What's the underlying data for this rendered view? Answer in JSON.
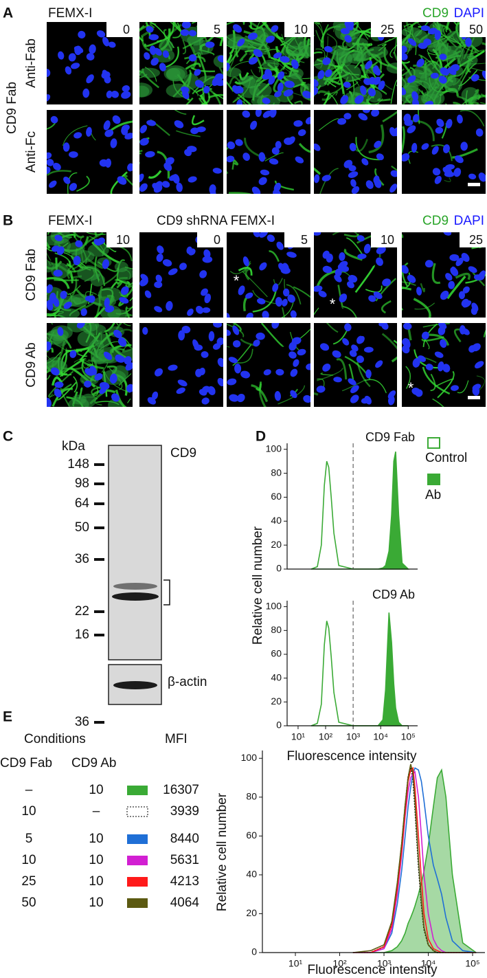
{
  "panel_a": {
    "label": "A",
    "cell_line": "FEMX-I",
    "stain": [
      "CD9",
      "DAPI"
    ],
    "group_label": "CD9 Fab",
    "rows": [
      "Anti-Fab",
      "Anti-Fc"
    ],
    "concentrations": [
      0,
      5,
      10,
      25,
      50
    ]
  },
  "panel_b": {
    "label": "B",
    "cell_lines": [
      "FEMX-I",
      "CD9 shRNA FEMX-I"
    ],
    "stain": [
      "CD9",
      "DAPI"
    ],
    "rows": [
      "CD9 Fab",
      "CD9 Ab"
    ],
    "concentrations": [
      10,
      0,
      5,
      10,
      25
    ],
    "asterisks": [
      "*",
      "*",
      "*"
    ]
  },
  "panel_c": {
    "label": "C",
    "unit": "kDa",
    "markers": [
      148,
      98,
      64,
      50,
      36,
      22,
      16
    ],
    "target": "CD9",
    "loading_control": "β-actin",
    "loading_marker": 36
  },
  "panel_d": {
    "label": "D"
  },
  "panel_e": {
    "label": "E",
    "table": {
      "header": "Conditions",
      "value_header": "MFI",
      "columns": [
        "CD9 Fab",
        "CD9 Ab"
      ],
      "rows": [
        {
          "fab": "–",
          "ab": "10",
          "mfi": 16307,
          "color": "#3aaa35"
        },
        {
          "fab": "10",
          "ab": "–",
          "mfi": 3939,
          "color": "#000000",
          "dotted": true
        },
        {
          "fab": "5",
          "ab": "10",
          "mfi": 8440,
          "color": "#1f6fd6"
        },
        {
          "fab": "10",
          "ab": "10",
          "mfi": 5631,
          "color": "#d21fd2"
        },
        {
          "fab": "25",
          "ab": "10",
          "mfi": 4213,
          "color": "#ff1a1a"
        },
        {
          "fab": "50",
          "ab": "10",
          "mfi": 4064,
          "color": "#5c5a12"
        }
      ]
    }
  },
  "chart_data": [
    {
      "type": "line",
      "title": "CD9 Fab",
      "ylabel": "Relative cell number",
      "xscale": "log",
      "x": [
        30,
        50,
        70,
        90,
        110,
        130,
        160,
        200,
        300,
        1000,
        8000,
        12000,
        15000,
        20000,
        25000,
        30000,
        35000,
        45000,
        60000,
        100000
      ],
      "xlim": [
        4,
        220000
      ],
      "ylim": [
        0,
        105
      ],
      "yticks": [
        0,
        20,
        40,
        60,
        80,
        100
      ],
      "threshold": 1000,
      "series": [
        {
          "name": "Control",
          "color": "#3aaa35",
          "fill": false,
          "values": [
            0,
            2,
            20,
            70,
            90,
            85,
            60,
            30,
            3,
            0,
            0,
            0,
            0,
            0,
            0,
            0,
            0,
            0,
            0,
            0
          ]
        },
        {
          "name": "Ab",
          "color": "#3aaa35",
          "fill": true,
          "values": [
            0,
            0,
            0,
            0,
            0,
            0,
            0,
            0,
            0,
            0,
            0,
            1,
            3,
            15,
            45,
            90,
            98,
            45,
            5,
            0
          ]
        }
      ]
    },
    {
      "type": "line",
      "title": "CD9 Ab",
      "xlabel": "Fluorescence intensity",
      "xscale": "log",
      "x": [
        30,
        50,
        70,
        90,
        110,
        130,
        160,
        200,
        300,
        1000,
        8000,
        12000,
        15000,
        20000,
        25000,
        30000,
        35000,
        45000,
        60000,
        100000
      ],
      "xlim": [
        4,
        220000
      ],
      "ylim": [
        0,
        105
      ],
      "yticks": [
        0,
        20,
        40,
        60,
        80,
        100
      ],
      "threshold": 1000,
      "xticks": [
        {
          "value": 10,
          "label": "10¹"
        },
        {
          "value": 100,
          "label": "10²"
        },
        {
          "value": 1000,
          "label": "10³"
        },
        {
          "value": 10000,
          "label": "10⁴"
        },
        {
          "value": 100000,
          "label": "10⁵"
        }
      ],
      "series": [
        {
          "color": "#3aaa35",
          "fill": false,
          "values": [
            0,
            2,
            18,
            68,
            88,
            82,
            58,
            28,
            3,
            0,
            0,
            0,
            0,
            0,
            0,
            0,
            0,
            0,
            0,
            0
          ]
        },
        {
          "color": "#3aaa35",
          "fill": true,
          "values": [
            0,
            0,
            0,
            0,
            0,
            0,
            0,
            0,
            0,
            0,
            0,
            5,
            30,
            95,
            70,
            35,
            15,
            3,
            0,
            0
          ]
        }
      ]
    },
    {
      "type": "line",
      "xlabel": "Fluorescence intensity",
      "ylabel": "Relative cell number",
      "xscale": "log",
      "x": [
        200,
        500,
        1000,
        1500,
        2000,
        2500,
        3000,
        3500,
        4000,
        4500,
        5000,
        6000,
        7000,
        8000,
        10000,
        13000,
        16000,
        20000,
        25000,
        35000,
        60000,
        120000
      ],
      "xlim": [
        1.8,
        190000
      ],
      "ylim": [
        0,
        104
      ],
      "yticks": [
        0,
        20,
        40,
        60,
        80,
        100
      ],
      "xticks": [
        {
          "value": 10,
          "label": "10¹"
        },
        {
          "value": 100,
          "label": "10²"
        },
        {
          "value": 1000,
          "label": "10³"
        },
        {
          "value": 10000,
          "label": "10⁴"
        },
        {
          "value": 100000,
          "label": "10⁵"
        }
      ],
      "series": [
        {
          "color": "#3aaa35",
          "fill": true,
          "values": [
            0,
            0,
            0,
            1,
            3,
            6,
            10,
            15,
            18,
            21,
            24,
            30,
            36,
            42,
            55,
            75,
            90,
            94,
            80,
            40,
            5,
            0
          ]
        },
        {
          "color": "#000000",
          "dotted": true,
          "values": [
            0,
            0,
            3,
            15,
            35,
            55,
            75,
            90,
            96,
            90,
            75,
            45,
            25,
            12,
            4,
            1,
            0,
            0,
            0,
            0,
            0,
            0
          ]
        },
        {
          "color": "#1f6fd6",
          "values": [
            0,
            0,
            2,
            10,
            25,
            42,
            60,
            75,
            85,
            92,
            95,
            94,
            88,
            78,
            60,
            45,
            38,
            30,
            18,
            6,
            1,
            0
          ]
        },
        {
          "color": "#d21fd2",
          "values": [
            0,
            0,
            2,
            12,
            30,
            50,
            70,
            83,
            90,
            92,
            93,
            80,
            60,
            40,
            20,
            7,
            3,
            1,
            0,
            0,
            0,
            0
          ]
        },
        {
          "color": "#ff1a1a",
          "values": [
            0,
            0,
            3,
            14,
            33,
            52,
            72,
            88,
            94,
            95,
            85,
            60,
            38,
            20,
            7,
            2,
            1,
            0,
            0,
            0,
            0,
            0
          ]
        },
        {
          "color": "#5c5a12",
          "values": [
            0,
            1,
            4,
            16,
            36,
            56,
            76,
            90,
            97,
            92,
            78,
            48,
            27,
            13,
            4,
            1,
            0,
            0,
            0,
            0,
            0,
            0
          ]
        }
      ]
    }
  ]
}
